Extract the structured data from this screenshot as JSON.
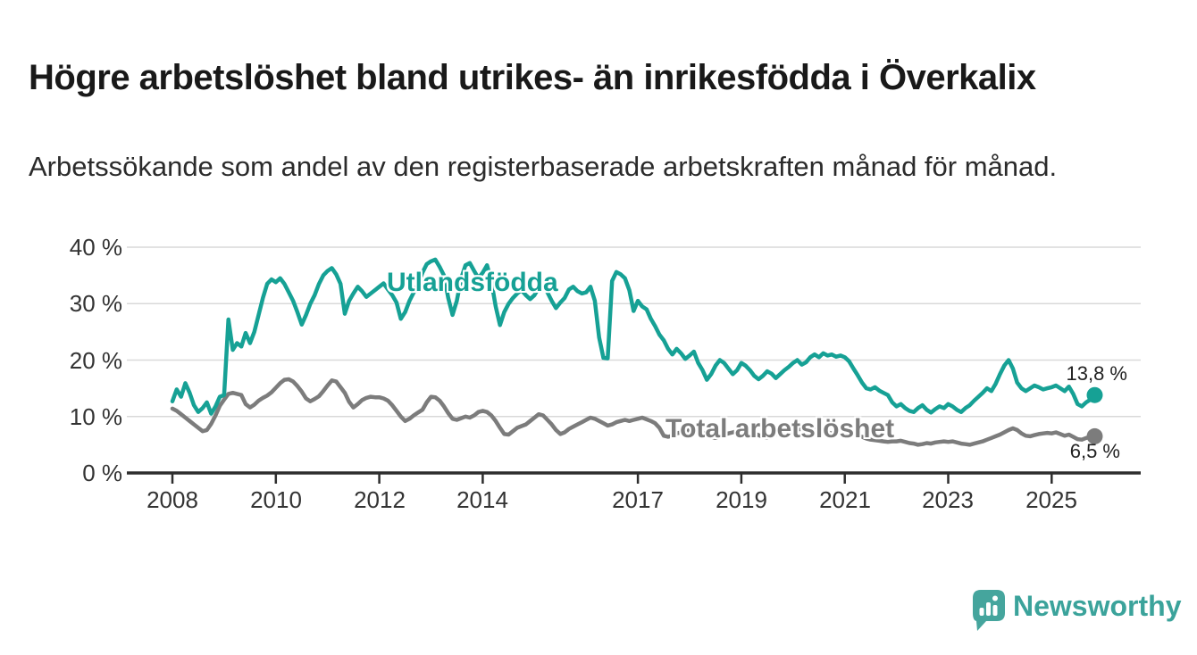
{
  "title": "Högre arbetslöshet bland utrikes- än inrikesfödda i Överkalix",
  "subtitle": "Arbetssökande som andel av den registerbaserade arbetskraften månad för månad.",
  "logo": {
    "text": "Newsworthy",
    "icon": "speech-bubble-bar-chart",
    "color": "#3ba39b"
  },
  "colors": {
    "foreign_born_line": "#16a195",
    "total_line": "#7c7c7c",
    "gridline": "#d9d9d9",
    "axis": "#2d2d2d",
    "text": "#333333"
  },
  "chart_data": {
    "type": "line",
    "title": "Högre arbetslöshet bland utrikes- än inrikesfödda i Överkalix",
    "subtitle": "Arbetssökande som andel av den registerbaserade arbetskraften månad för månad.",
    "frequency": "monthly",
    "x_start_year": 2008,
    "x_end_label": "2025-11",
    "ylim": [
      0,
      42
    ],
    "grid": "horizontal",
    "legend_position": "inline-labels",
    "y_ticks": [
      {
        "value": 40,
        "label": "40 %"
      },
      {
        "value": 30,
        "label": "30 %"
      },
      {
        "value": 20,
        "label": "20 %"
      },
      {
        "value": 10,
        "label": "10 %"
      },
      {
        "value": 0,
        "label": "0 %"
      }
    ],
    "x_ticks": [
      {
        "year": 2008,
        "label": "2008"
      },
      {
        "year": 2010,
        "label": "2010"
      },
      {
        "year": 2012,
        "label": "2012"
      },
      {
        "year": 2014,
        "label": "2014"
      },
      {
        "year": 2017,
        "label": "2017"
      },
      {
        "year": 2019,
        "label": "2019"
      },
      {
        "year": 2021,
        "label": "2021"
      },
      {
        "year": 2023,
        "label": "2023"
      },
      {
        "year": 2025,
        "label": "2025"
      }
    ],
    "series": [
      {
        "name": "Utlandsfödda",
        "color": "#16a195",
        "end_label": "13,8 %",
        "end_value": 13.8,
        "values": [
          12.7,
          14.8,
          13.5,
          15.9,
          14.2,
          12.0,
          10.8,
          11.5,
          12.5,
          10.5,
          11.8,
          13.5,
          13.8,
          27.2,
          21.8,
          23.0,
          22.4,
          24.8,
          23.0,
          25.0,
          28.0,
          31.0,
          33.5,
          34.3,
          33.8,
          34.5,
          33.5,
          32.0,
          30.5,
          28.5,
          26.3,
          28.0,
          30.0,
          31.5,
          33.5,
          35.0,
          35.8,
          36.3,
          35.2,
          33.5,
          28.2,
          30.5,
          31.8,
          33.0,
          32.2,
          31.2,
          31.8,
          32.4,
          33.0,
          33.6,
          32.5,
          31.5,
          30.2,
          27.3,
          28.5,
          30.5,
          32.0,
          33.5,
          35.5,
          37.0,
          37.5,
          37.8,
          36.5,
          35.0,
          31.0,
          28.0,
          30.5,
          34.5,
          36.8,
          37.2,
          35.8,
          34.5,
          35.5,
          36.8,
          34.0,
          29.5,
          26.2,
          28.5,
          30.0,
          31.0,
          31.8,
          32.4,
          31.5,
          30.8,
          31.5,
          32.8,
          33.5,
          32.0,
          30.5,
          29.2,
          30.2,
          31.0,
          32.5,
          33.0,
          32.2,
          31.8,
          32.0,
          33.0,
          30.5,
          24.0,
          20.4,
          20.3,
          34.0,
          35.6,
          35.2,
          34.5,
          32.4,
          28.7,
          30.5,
          29.5,
          29.0,
          27.3,
          26.0,
          24.5,
          23.5,
          22.0,
          21.0,
          22.0,
          21.2,
          20.2,
          20.8,
          21.5,
          19.5,
          18.2,
          16.5,
          17.5,
          19.0,
          20.0,
          19.5,
          18.5,
          17.5,
          18.2,
          19.5,
          19.0,
          18.2,
          17.2,
          16.6,
          17.2,
          18.0,
          17.6,
          16.8,
          17.5,
          18.2,
          18.8,
          19.5,
          20.0,
          19.2,
          19.6,
          20.5,
          21.0,
          20.5,
          21.2,
          20.8,
          21.0,
          20.6,
          20.8,
          20.5,
          19.8,
          18.5,
          17.3,
          16.0,
          15.0,
          14.8,
          15.2,
          14.6,
          14.2,
          13.8,
          12.5,
          11.8,
          12.2,
          11.5,
          11.0,
          10.8,
          11.5,
          12.0,
          11.2,
          10.7,
          11.3,
          11.8,
          11.5,
          12.2,
          11.8,
          11.2,
          10.8,
          11.5,
          12.0,
          12.8,
          13.5,
          14.2,
          15.0,
          14.5,
          15.8,
          17.5,
          19.0,
          20.0,
          18.5,
          16.0,
          15.0,
          14.5,
          15.0,
          15.5,
          15.2,
          14.8,
          15.0,
          15.2,
          15.5,
          15.0,
          14.5,
          15.3,
          14.0,
          12.2,
          11.8,
          12.5,
          13.0,
          13.8
        ]
      },
      {
        "name": "Total arbetslöshet",
        "color": "#7c7c7c",
        "end_label": "6,5 %",
        "end_value": 6.5,
        "values": [
          11.4,
          11.0,
          10.4,
          9.8,
          9.2,
          8.6,
          8.0,
          7.4,
          7.6,
          8.7,
          10.2,
          11.9,
          13.0,
          14.0,
          14.2,
          14.0,
          13.8,
          12.2,
          11.6,
          12.1,
          12.8,
          13.3,
          13.7,
          14.3,
          15.1,
          15.9,
          16.5,
          16.6,
          16.2,
          15.4,
          14.4,
          13.2,
          12.7,
          13.1,
          13.6,
          14.5,
          15.5,
          16.4,
          16.2,
          15.2,
          14.2,
          12.6,
          11.6,
          12.2,
          12.9,
          13.3,
          13.5,
          13.4,
          13.4,
          13.2,
          12.8,
          12.0,
          11.0,
          10.0,
          9.2,
          9.6,
          10.2,
          10.7,
          11.2,
          12.5,
          13.5,
          13.4,
          12.8,
          11.8,
          10.6,
          9.6,
          9.4,
          9.7,
          10.0,
          9.8,
          10.2,
          10.8,
          11.0,
          10.8,
          10.2,
          9.2,
          8.0,
          6.9,
          6.8,
          7.4,
          8.0,
          8.3,
          8.6,
          9.2,
          9.8,
          10.4,
          10.2,
          9.4,
          8.6,
          7.6,
          6.9,
          7.2,
          7.8,
          8.2,
          8.6,
          9.0,
          9.4,
          9.8,
          9.6,
          9.2,
          8.8,
          8.4,
          8.6,
          9.0,
          9.2,
          9.4,
          9.2,
          9.4,
          9.6,
          9.8,
          9.5,
          9.2,
          8.8,
          8.0,
          6.6,
          6.4,
          6.6,
          7.0,
          7.2,
          7.4,
          7.6,
          7.8,
          7.5,
          7.2,
          6.8,
          6.4,
          6.2,
          6.5,
          6.8,
          7.0,
          7.2,
          7.4,
          7.5,
          7.6,
          7.4,
          7.0,
          6.7,
          6.4,
          6.3,
          6.6,
          6.8,
          7.0,
          7.1,
          7.3,
          7.5,
          7.7,
          7.8,
          8.0,
          7.9,
          7.7,
          7.5,
          7.4,
          7.2,
          7.0,
          6.9,
          6.8,
          6.9,
          7.0,
          6.8,
          6.6,
          6.4,
          6.1,
          5.9,
          5.8,
          5.7,
          5.6,
          5.5,
          5.6,
          5.6,
          5.7,
          5.5,
          5.3,
          5.2,
          5.0,
          5.1,
          5.3,
          5.2,
          5.4,
          5.5,
          5.6,
          5.5,
          5.6,
          5.4,
          5.2,
          5.1,
          5.0,
          5.2,
          5.4,
          5.6,
          5.9,
          6.2,
          6.5,
          6.8,
          7.2,
          7.6,
          7.9,
          7.6,
          7.0,
          6.6,
          6.5,
          6.7,
          6.9,
          7.0,
          7.1,
          7.0,
          7.2,
          6.9,
          6.6,
          6.8,
          6.4,
          6.0,
          5.9,
          6.2,
          6.4,
          6.5
        ]
      }
    ]
  }
}
